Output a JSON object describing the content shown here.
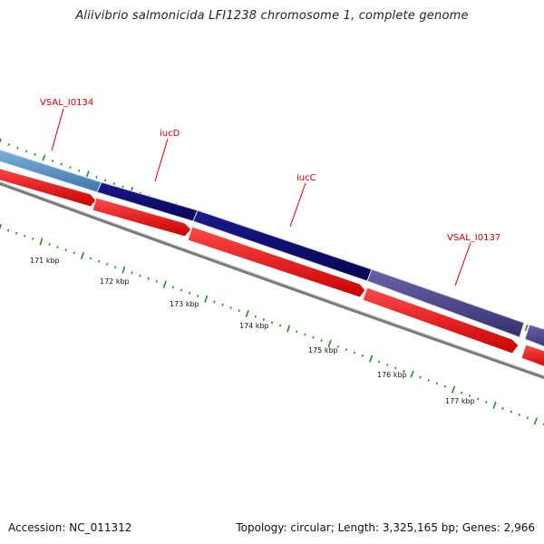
{
  "title": "Aliivibrio salmonicida LFI1238 chromosome 1, complete genome",
  "footer": {
    "accession": "Accession: NC_011312",
    "summary": "Topology: circular; Length: 3,325,165 bp; Genes: 2,966"
  },
  "colors": {
    "background": "#ffffff",
    "gene_label": "#cc0000",
    "tick_green": "#2a8a2a",
    "backbone": "#7a7a7a",
    "cds_red": "#ff0000"
  },
  "gene_labels": [
    {
      "name": "VSAL_I0134"
    },
    {
      "name": "iucD"
    },
    {
      "name": "iucC"
    },
    {
      "name": "VSAL_I0137"
    }
  ],
  "scale_labels": [
    "171 kbp",
    "172 kbp",
    "173 kbp",
    "174 kbp",
    "175 kbp",
    "176 kbp",
    "177 kbp"
  ]
}
